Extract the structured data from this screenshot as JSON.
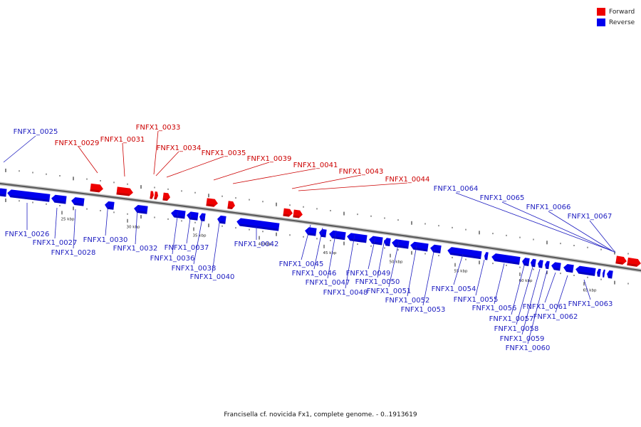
{
  "legend": {
    "forward_label": "Forward",
    "reverse_label": "Reverse",
    "forward_color": "#ee0000",
    "reverse_color": "#0000ee"
  },
  "caption": "Francisella cf. novicida Fx1, complete genome. - 0..1913619",
  "scale_labels": [
    "25 kbp",
    "30 kbp",
    "35 kbp",
    "40 kbp",
    "45 kbp",
    "50 kbp",
    "55 kbp",
    "60 kbp",
    "65 kbp"
  ],
  "forward_genes": [
    "FNFX1_0029",
    "FNFX1_0031",
    "FNFX1_0033",
    "FNFX1_0034",
    "FNFX1_0035",
    "FNFX1_0039",
    "FNFX1_0041",
    "FNFX1_0043",
    "FNFX1_0044"
  ],
  "reverse_genes": [
    "FNFX1_0025",
    "FNFX1_0026",
    "FNFX1_0027",
    "FNFX1_0028",
    "FNFX1_0030",
    "FNFX1_0032",
    "FNFX1_0036",
    "FNFX1_0037",
    "FNFX1_0038",
    "FNFX1_0040",
    "FNFX1_0042",
    "FNFX1_0045",
    "FNFX1_0046",
    "FNFX1_0047",
    "FNFX1_0048",
    "FNFX1_0049",
    "FNFX1_0050",
    "FNFX1_0051",
    "FNFX1_0052",
    "FNFX1_0053",
    "FNFX1_0054",
    "FNFX1_0055",
    "FNFX1_0056",
    "FNFX1_0057",
    "FNFX1_0058",
    "FNFX1_0059",
    "FNFX1_0060",
    "FNFX1_0061",
    "FNFX1_0062",
    "FNFX1_0063",
    "FNFX1_0064",
    "FNFX1_0065",
    "FNFX1_0066",
    "FNFX1_0067"
  ]
}
